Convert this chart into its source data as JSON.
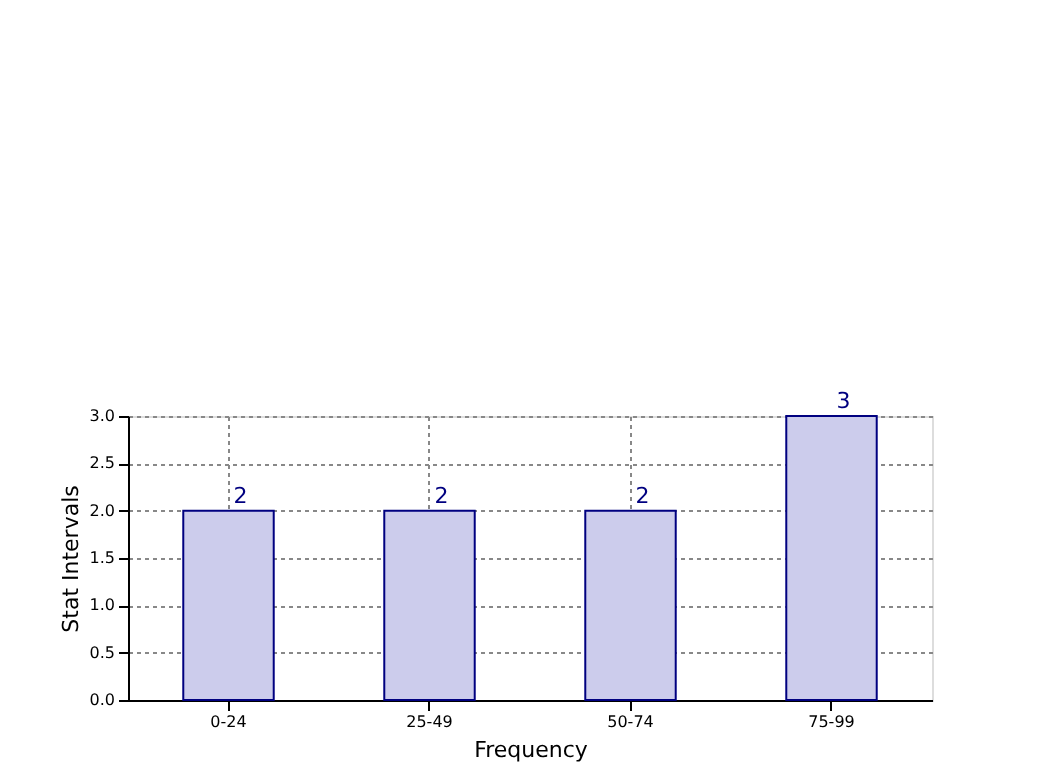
{
  "chart_data": {
    "type": "bar",
    "xlabel": "Frequency",
    "ylabel": "Stat Intervals",
    "categories": [
      "0-24",
      "25-49",
      "50-74",
      "75-99"
    ],
    "values": [
      2,
      2,
      2,
      3
    ],
    "color": "#ccccec",
    "ylim": [
      0,
      3
    ],
    "yticks": [
      {
        "value": 0,
        "label": "0.0"
      },
      {
        "value": 0.5,
        "label": "0.5"
      },
      {
        "value": 1,
        "label": "1.0"
      },
      {
        "value": 1.5,
        "label": "1.5"
      },
      {
        "value": 2,
        "label": "2.0"
      },
      {
        "value": 2.5,
        "label": "2.5"
      },
      {
        "value": 3,
        "label": "3.0"
      }
    ],
    "grid": true,
    "data_labels": true
  }
}
